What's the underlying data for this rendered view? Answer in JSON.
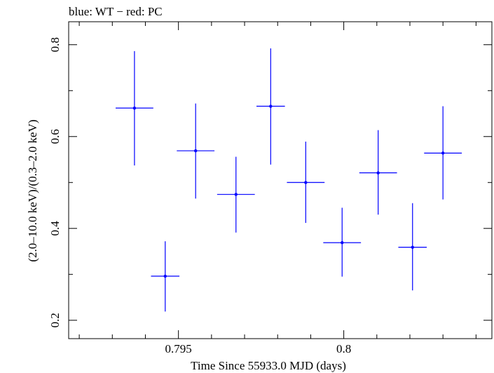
{
  "chart_data": {
    "type": "scatter",
    "title": "blue: WT − red: PC",
    "xlabel": "Time Since 55933.0 MJD (days)",
    "ylabel": "(2.0–10.0 keV)/(0.3–2.0 keV)",
    "xlim": [
      0.79168,
      0.80448
    ],
    "ylim": [
      0.16,
      0.85
    ],
    "x_ticks": [
      {
        "value": 0.795,
        "label": "0.795"
      },
      {
        "value": 0.8,
        "label": "0.8"
      }
    ],
    "y_ticks": [
      {
        "value": 0.2,
        "label": "0.2"
      },
      {
        "value": 0.4,
        "label": "0.4"
      },
      {
        "value": 0.6,
        "label": "0.6"
      },
      {
        "value": 0.8,
        "label": "0.8"
      }
    ],
    "x_minor_step": 0.001,
    "y_minor_step": 0.1,
    "grid": false,
    "series": [
      {
        "color": "#0000ff",
        "points": [
          {
            "x": 0.79367,
            "xerr": 0.00057,
            "y": 0.662,
            "yerr_low": 0.125,
            "yerr_high": 0.124
          },
          {
            "x": 0.7946,
            "xerr": 0.00043,
            "y": 0.296,
            "yerr_low": 0.077,
            "yerr_high": 0.076
          },
          {
            "x": 0.79552,
            "xerr": 0.00057,
            "y": 0.569,
            "yerr_low": 0.104,
            "yerr_high": 0.103
          },
          {
            "x": 0.79674,
            "xerr": 0.00057,
            "y": 0.474,
            "yerr_low": 0.083,
            "yerr_high": 0.082
          },
          {
            "x": 0.79779,
            "xerr": 0.00043,
            "y": 0.666,
            "yerr_low": 0.127,
            "yerr_high": 0.126
          },
          {
            "x": 0.79885,
            "xerr": 0.00057,
            "y": 0.5,
            "yerr_low": 0.088,
            "yerr_high": 0.089
          },
          {
            "x": 0.79995,
            "xerr": 0.00057,
            "y": 0.369,
            "yerr_low": 0.074,
            "yerr_high": 0.076
          },
          {
            "x": 0.80104,
            "xerr": 0.00057,
            "y": 0.521,
            "yerr_low": 0.091,
            "yerr_high": 0.093
          },
          {
            "x": 0.80208,
            "xerr": 0.00043,
            "y": 0.359,
            "yerr_low": 0.094,
            "yerr_high": 0.096
          },
          {
            "x": 0.803,
            "xerr": 0.00057,
            "y": 0.564,
            "yerr_low": 0.101,
            "yerr_high": 0.102
          }
        ]
      }
    ]
  }
}
